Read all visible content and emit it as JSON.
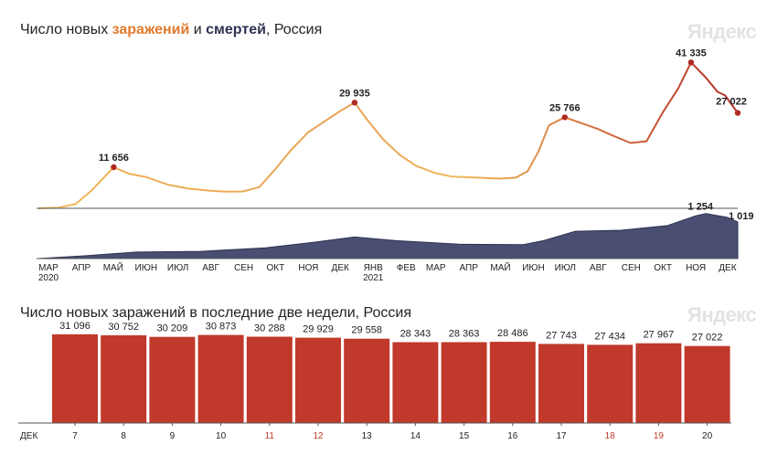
{
  "top_chart": {
    "title_prefix": "Число новых ",
    "title_infections": "заражений",
    "title_mid": " и ",
    "title_deaths": "смертей",
    "title_suffix": ", Россия",
    "watermark": "Яндекс",
    "colors": {
      "infections_light": "#f2b85a",
      "infections_dark": "#b52a25",
      "deaths_fill": "#4a4e72",
      "deaths_top": "#2d3250",
      "point": "#b02a22"
    }
  },
  "bottom_chart": {
    "title": "Число новых заражений в последние две недели, Россия",
    "watermark": "Яндекс",
    "colors": {
      "bar": "#c0392b",
      "weekend_label": "#c0392b"
    }
  },
  "chart_data": [
    {
      "type": "line",
      "title": "Число новых заражений и смертей, Россия",
      "xlabel": "",
      "ylabel": "",
      "x_tick_labels": [
        "МАР",
        "АПР",
        "МАЙ",
        "ИЮН",
        "ИЮЛ",
        "АВГ",
        "СЕН",
        "ОКТ",
        "НОЯ",
        "ДЕК",
        "ЯНВ",
        "ФЕВ",
        "МАР",
        "АПР",
        "МАЙ",
        "ИЮН",
        "ИЮЛ",
        "АВГ",
        "СЕН",
        "ОКТ",
        "НОЯ",
        "ДЕК"
      ],
      "year_labels": [
        "2020",
        "2021"
      ],
      "series": [
        {
          "name": "заражений",
          "x": [
            "2020-03-01",
            "2020-03-20",
            "2020-04-05",
            "2020-04-20",
            "2020-05-01",
            "2020-05-11",
            "2020-05-25",
            "2020-06-10",
            "2020-07-01",
            "2020-07-20",
            "2020-08-10",
            "2020-08-25",
            "2020-09-10",
            "2020-09-25",
            "2020-10-10",
            "2020-10-25",
            "2020-11-10",
            "2020-11-25",
            "2020-12-10",
            "2020-12-24",
            "2021-01-05",
            "2021-01-20",
            "2021-02-05",
            "2021-02-20",
            "2021-03-10",
            "2021-03-25",
            "2021-04-10",
            "2021-04-25",
            "2021-05-10",
            "2021-05-25",
            "2021-06-05",
            "2021-06-15",
            "2021-06-25",
            "2021-07-10",
            "2021-07-25",
            "2021-08-10",
            "2021-08-25",
            "2021-09-10",
            "2021-09-25",
            "2021-10-10",
            "2021-10-25",
            "2021-11-06",
            "2021-11-20",
            "2021-12-01",
            "2021-12-08",
            "2021-12-20"
          ],
          "values": [
            0,
            200,
            1200,
            5000,
            8500,
            11656,
            9800,
            8900,
            6700,
            5600,
            5000,
            4700,
            4800,
            6000,
            11000,
            16500,
            21500,
            24500,
            27500,
            29935,
            25000,
            19500,
            15000,
            12000,
            10000,
            9000,
            8800,
            8600,
            8400,
            8700,
            10500,
            16000,
            23500,
            25766,
            24200,
            22500,
            20500,
            18500,
            19000,
            27000,
            34000,
            41335,
            37000,
            33000,
            32000,
            27022
          ]
        },
        {
          "name": "смертей",
          "x": [
            "2020-03-01",
            "2020-04-15",
            "2020-06-01",
            "2020-08-01",
            "2020-10-01",
            "2020-11-15",
            "2020-12-24",
            "2021-02-01",
            "2021-04-01",
            "2021-06-01",
            "2021-06-20",
            "2021-07-20",
            "2021-09-01",
            "2021-10-15",
            "2021-11-10",
            "2021-11-20",
            "2021-12-10",
            "2021-12-20"
          ],
          "values": [
            0,
            80,
            180,
            200,
            300,
            450,
            600,
            500,
            400,
            390,
            500,
            760,
            790,
            920,
            1190,
            1254,
            1150,
            1019
          ]
        }
      ],
      "annotations": [
        {
          "date": "2020-05-11",
          "label": "11 656",
          "value": 11656
        },
        {
          "date": "2020-12-24",
          "label": "29 935",
          "value": 29935
        },
        {
          "date": "2021-07-10",
          "label": "25 766",
          "value": 25766
        },
        {
          "date": "2021-11-06",
          "label": "41 335",
          "value": 41335
        },
        {
          "date": "2021-12-20",
          "label": "27 022",
          "value": 27022
        },
        {
          "date": "2021-11-20",
          "label": "1 254",
          "value": 1254
        },
        {
          "date": "2021-12-20",
          "label": "1 019",
          "value": 1019
        }
      ],
      "ylim": [
        0,
        44000
      ],
      "deaths_ylim": [
        0,
        1400
      ],
      "grid": false,
      "legend": "none"
    },
    {
      "type": "bar",
      "title": "Число новых заражений в последние две недели, Россия",
      "xlabel": "",
      "month_label": "ДЕК",
      "categories": [
        "7",
        "8",
        "9",
        "10",
        "11",
        "12",
        "13",
        "14",
        "15",
        "16",
        "17",
        "18",
        "19",
        "20"
      ],
      "weekend_categories": [
        "11",
        "12",
        "18",
        "19"
      ],
      "values": [
        31096,
        30752,
        30209,
        30873,
        30288,
        29929,
        29558,
        28343,
        28363,
        28486,
        27743,
        27434,
        27967,
        27022
      ],
      "value_labels": [
        "31 096",
        "30 752",
        "30 209",
        "30 873",
        "30 288",
        "29 929",
        "29 558",
        "28 343",
        "28 363",
        "28 486",
        "27 743",
        "27 434",
        "27 967",
        "27 022"
      ],
      "ylim": [
        0,
        33000
      ],
      "grid": false,
      "legend": "none"
    }
  ]
}
